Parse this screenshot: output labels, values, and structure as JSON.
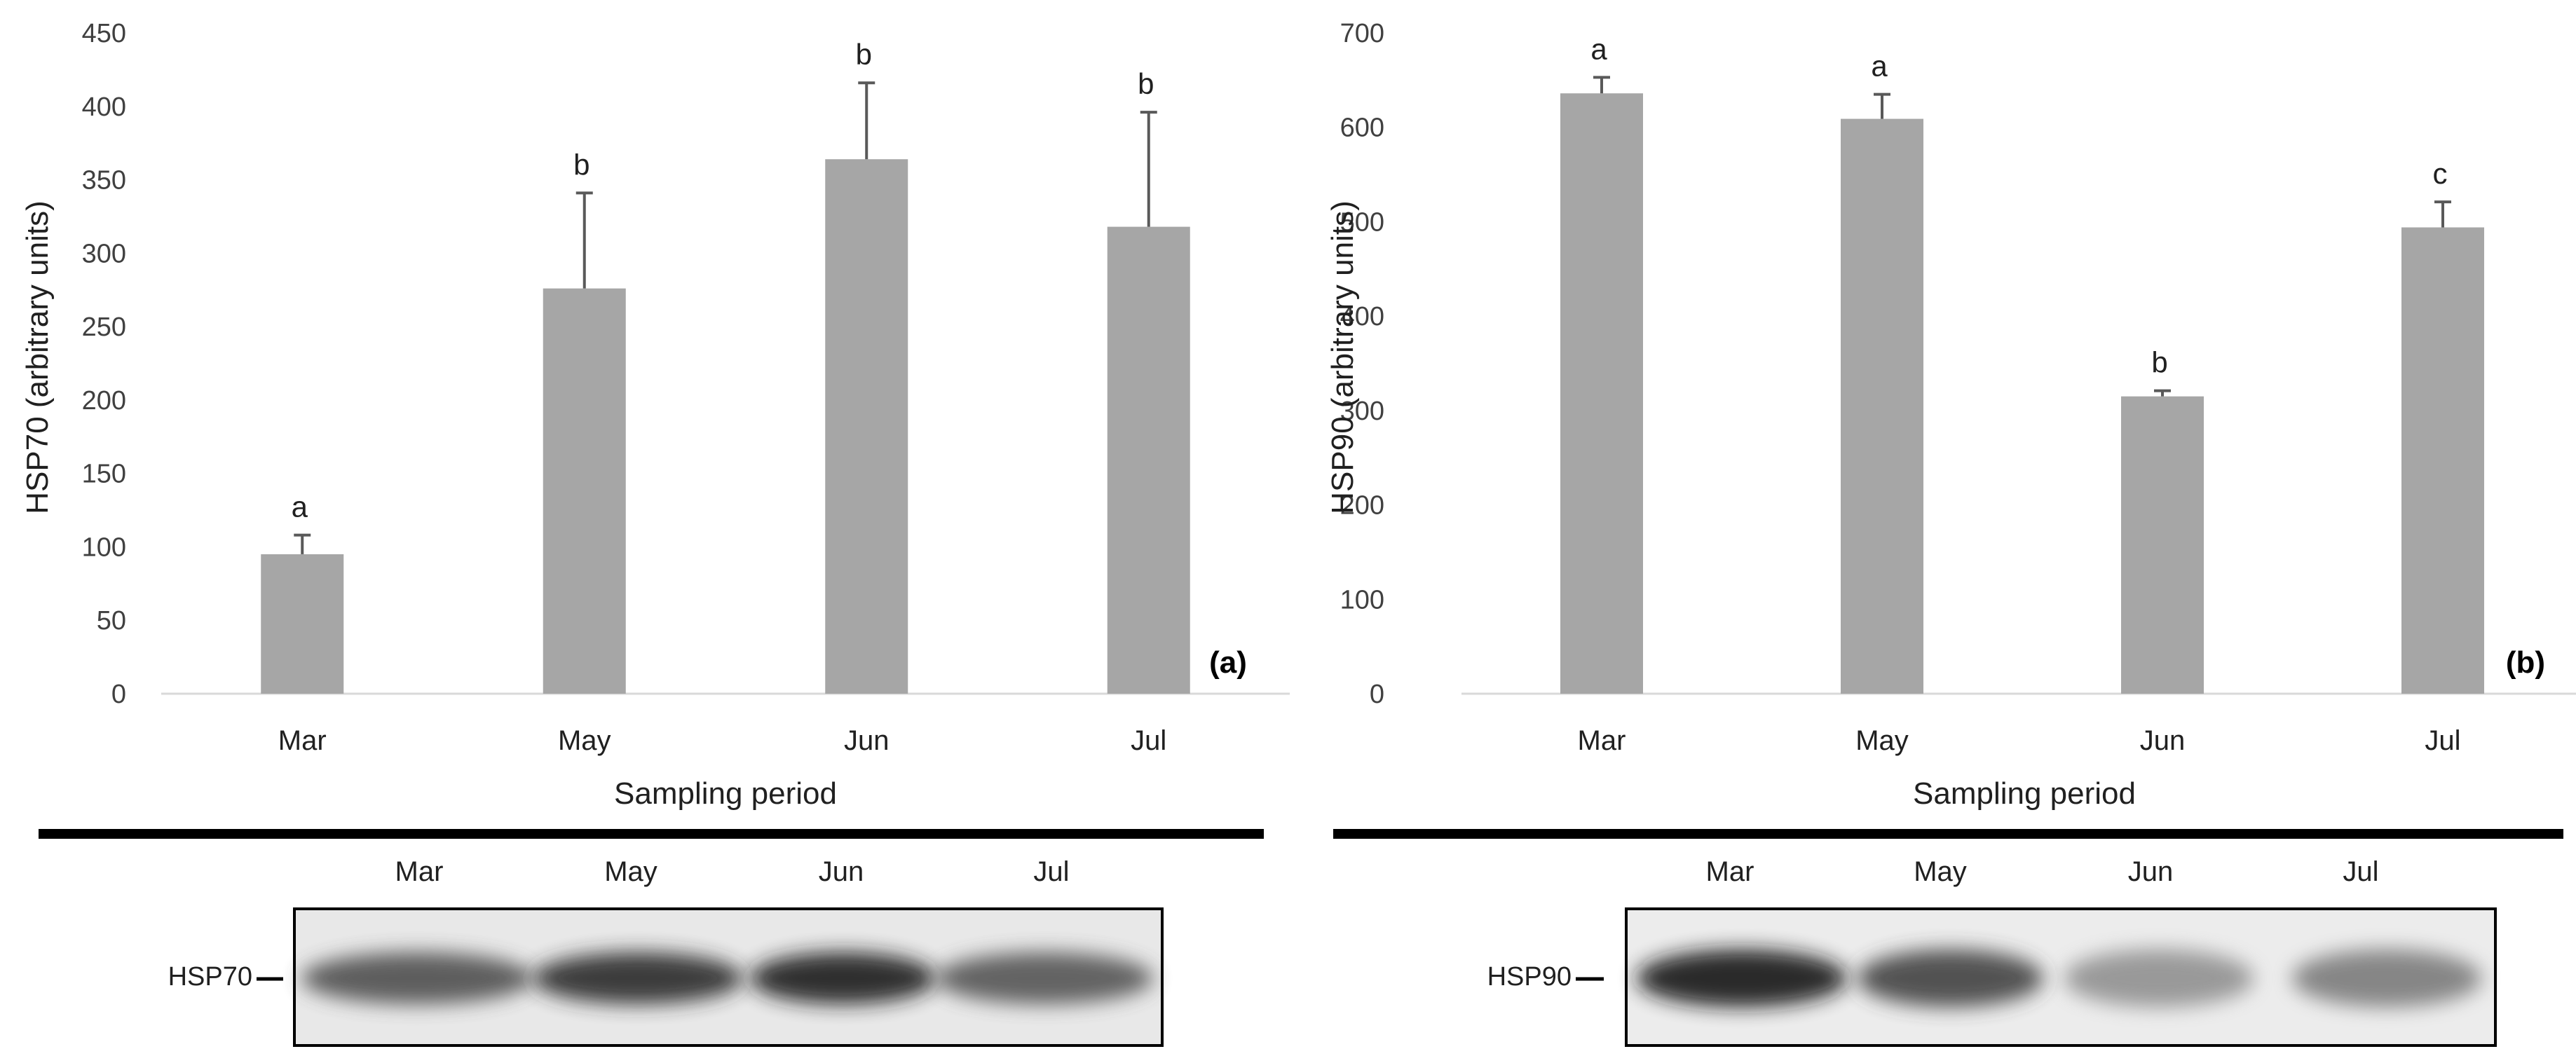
{
  "chart_data": [
    {
      "type": "bar",
      "panel_label": "(a)",
      "categories": [
        "Mar",
        "May",
        "Jun",
        "Jul"
      ],
      "values": [
        95,
        276,
        364,
        318
      ],
      "errors": [
        13,
        65,
        52,
        78
      ],
      "significance": [
        "a",
        "b",
        "b",
        "b"
      ],
      "xlabel": "Sampling period",
      "ylabel": "HSP70 (arbitrary units)",
      "ylim": [
        0,
        450
      ],
      "yticks": [
        0,
        50,
        100,
        150,
        200,
        250,
        300,
        350,
        400,
        450
      ],
      "bar_color": "#a6a6a6",
      "error_color": "#595959",
      "grid": false,
      "blot": {
        "protein": "HSP70",
        "lanes": [
          "Mar",
          "May",
          "Jun",
          "Jul"
        ],
        "band_intensity": [
          0.72,
          0.9,
          0.95,
          0.7
        ]
      }
    },
    {
      "type": "bar",
      "panel_label": "(b)",
      "categories": [
        "Mar",
        "May",
        "Jun",
        "Jul"
      ],
      "values": [
        636,
        609,
        315,
        494
      ],
      "errors": [
        17,
        26,
        6,
        27
      ],
      "significance": [
        "a",
        "a",
        "b",
        "c"
      ],
      "xlabel": "Sampling period",
      "ylabel": "HSP90 (arbitrary units)",
      "ylim": [
        0,
        700
      ],
      "yticks": [
        0,
        100,
        200,
        300,
        400,
        500,
        600,
        700
      ],
      "bar_color": "#a6a6a6",
      "error_color": "#595959",
      "grid": false,
      "blot": {
        "protein": "HSP90",
        "lanes": [
          "Mar",
          "May",
          "Jun",
          "Jul"
        ],
        "band_intensity": [
          1.0,
          0.78,
          0.42,
          0.52
        ]
      }
    }
  ]
}
